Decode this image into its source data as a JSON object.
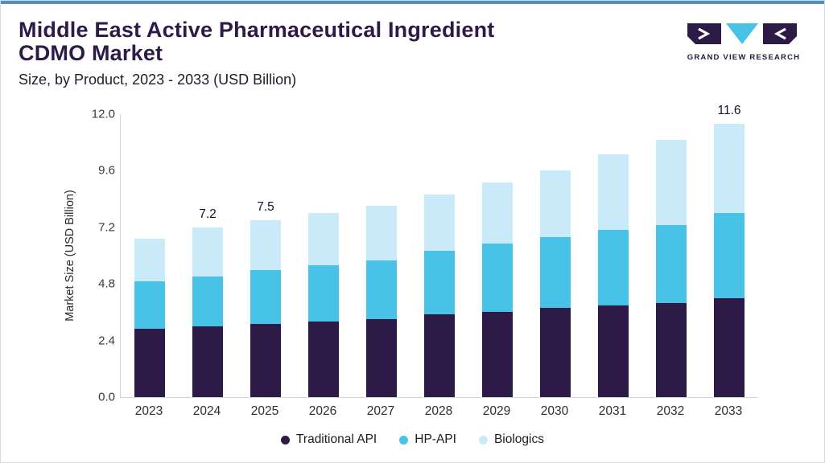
{
  "header": {
    "title_line1": "Middle East Active Pharmaceutical Ingredient",
    "title_line2": "CDMO Market",
    "subtitle": "Size, by Product, 2023 - 2033 (USD Billion)",
    "logo_text": "GRAND VIEW RESEARCH"
  },
  "colors": {
    "title": "#2e1a47",
    "top_bar": "#4e8fc7",
    "card_border": "#d4dbe1",
    "traditional_api": "#2e1a47",
    "hp_api": "#49c2e8",
    "biologics": "#c9eaf8"
  },
  "chart_data": {
    "type": "bar",
    "stacked": true,
    "title": "Middle East Active Pharmaceutical Ingredient CDMO Market",
    "subtitle": "Size, by Product, 2023 - 2033 (USD Billion)",
    "ylabel": "Market Size (USD Billion)",
    "xlabel": "",
    "ylim": [
      0,
      12
    ],
    "yticks": [
      "12.0",
      "9.6",
      "7.2",
      "4.8",
      "2.4",
      "0.0"
    ],
    "grid": false,
    "legend_position": "bottom",
    "categories": [
      "2023",
      "2024",
      "2025",
      "2026",
      "2027",
      "2028",
      "2029",
      "2030",
      "2031",
      "2032",
      "2033"
    ],
    "series": [
      {
        "name": "Traditional API",
        "color": "#2e1a47",
        "values": [
          2.9,
          3.0,
          3.1,
          3.2,
          3.3,
          3.5,
          3.6,
          3.8,
          3.9,
          4.0,
          4.2
        ]
      },
      {
        "name": "HP-API",
        "color": "#49c2e8",
        "values": [
          2.0,
          2.1,
          2.3,
          2.4,
          2.5,
          2.7,
          2.9,
          3.0,
          3.2,
          3.3,
          3.6
        ]
      },
      {
        "name": "Biologics",
        "color": "#c9eaf8",
        "values": [
          1.8,
          2.1,
          2.1,
          2.2,
          2.3,
          2.4,
          2.6,
          2.8,
          3.2,
          3.6,
          3.8
        ]
      }
    ],
    "totals_labels": [
      "",
      "7.2",
      "7.5",
      "",
      "",
      "",
      "",
      "",
      "",
      "",
      "11.6"
    ]
  },
  "legend": {
    "items": [
      {
        "label": "Traditional API",
        "color": "#2e1a47"
      },
      {
        "label": "HP-API",
        "color": "#49c2e8"
      },
      {
        "label": "Biologics",
        "color": "#c9eaf8"
      }
    ]
  }
}
